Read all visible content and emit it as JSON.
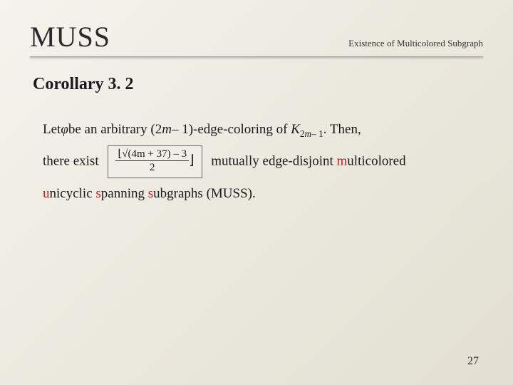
{
  "header": {
    "title": "MUSS",
    "subtitle": "Existence of Multicolored Subgraph"
  },
  "heading": "Corollary 3. 2",
  "body": {
    "line1_part1": "Let",
    "line1_phi": "φ",
    "line1_part2": "be an arbitrary (2",
    "line1_m1": "m",
    "line1_part3": "– 1)-edge-coloring of ",
    "line1_K": "K",
    "line1_sub_2": "2",
    "line1_sub_m": "m",
    "line1_sub_minus1": "– 1",
    "line1_part4": ". Then,",
    "line2_part1": "there exist",
    "formula_num": "√(4m + 37) – 3",
    "formula_den": "2",
    "line2_part2": " mutually edge-disjoint ",
    "line2_m": "m",
    "line2_part3": "ulticolored",
    "line3_u": "u",
    "line3_part1": "nicyclic ",
    "line3_s1": "s",
    "line3_part2": "panning ",
    "line3_s2": "s",
    "line3_part3": "ubgraphs (MUSS)."
  },
  "page_number": "27",
  "colors": {
    "highlight": "#c02020",
    "text": "#1a1a1a",
    "background_start": "#f5f3ed",
    "background_end": "#e2dfd2"
  }
}
